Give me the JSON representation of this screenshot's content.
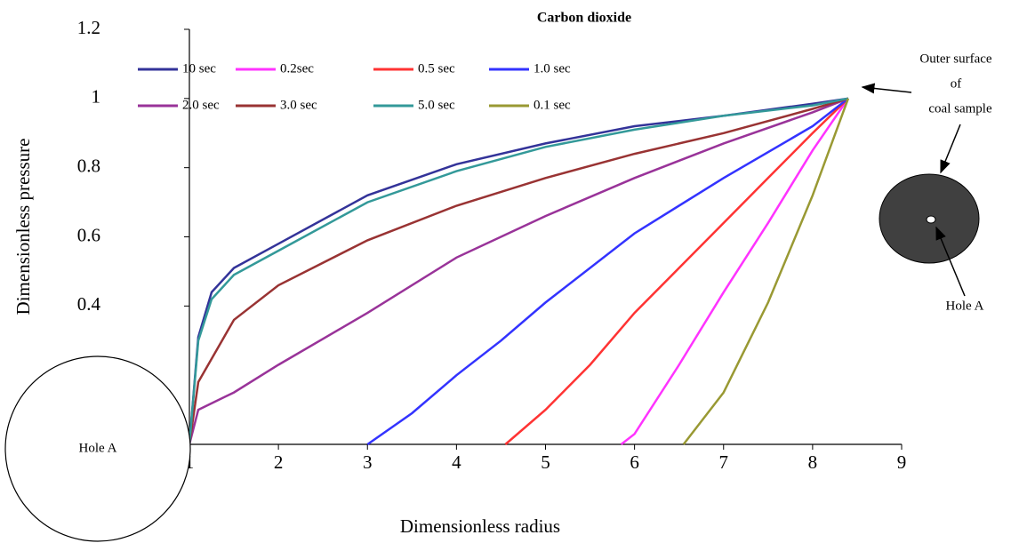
{
  "chart_data": {
    "type": "line",
    "title": "Carbon dioxide",
    "x_label": "Dimensionless radius",
    "y_label": "Dimensionless pressure",
    "xlim": [
      1,
      9
    ],
    "ylim": [
      0,
      1.2
    ],
    "xticks": [
      1,
      2,
      3,
      4,
      5,
      6,
      7,
      8,
      9
    ],
    "yticks": [
      0.4,
      0.6,
      0.8,
      1,
      1.2
    ],
    "annotations": [
      "Outer surface",
      "of",
      "coal sample",
      "Hole A",
      "Hole A"
    ],
    "series": [
      {
        "name": "10  sec",
        "color": "#333399",
        "x": [
          1,
          1.1,
          1.25,
          1.5,
          2,
          3,
          4,
          5,
          6,
          7,
          8,
          8.4
        ],
        "values": [
          0,
          0.31,
          0.44,
          0.51,
          0.58,
          0.72,
          0.81,
          0.87,
          0.92,
          0.95,
          0.985,
          1
        ]
      },
      {
        "name": "0.2sec",
        "color": "#ff33ff",
        "x": [
          5.85,
          6,
          6.5,
          7,
          7.5,
          8,
          8.4
        ],
        "values": [
          0,
          0.03,
          0.23,
          0.44,
          0.64,
          0.85,
          1
        ]
      },
      {
        "name": "0.5 sec",
        "color": "#ff3333",
        "x": [
          4.55,
          5,
          5.5,
          6,
          6.5,
          7,
          7.5,
          8,
          8.4
        ],
        "values": [
          0,
          0.1,
          0.23,
          0.38,
          0.51,
          0.64,
          0.77,
          0.9,
          1
        ]
      },
      {
        "name": "1.0 sec",
        "color": "#3333ff",
        "x": [
          3,
          3.5,
          4,
          4.5,
          5,
          6,
          7,
          8,
          8.4
        ],
        "values": [
          0,
          0.09,
          0.2,
          0.3,
          0.41,
          0.61,
          0.77,
          0.92,
          1
        ]
      },
      {
        "name": "2.0 sec",
        "color": "#993399",
        "x": [
          1,
          1.1,
          1.5,
          2,
          3,
          4,
          5,
          6,
          7,
          8,
          8.4
        ],
        "values": [
          0,
          0.1,
          0.15,
          0.23,
          0.38,
          0.54,
          0.66,
          0.77,
          0.87,
          0.96,
          1
        ]
      },
      {
        "name": "3.0 sec",
        "color": "#993333",
        "x": [
          1,
          1.1,
          1.5,
          2,
          3,
          4,
          5,
          6,
          7,
          8,
          8.4
        ],
        "values": [
          0,
          0.18,
          0.36,
          0.46,
          0.59,
          0.69,
          0.77,
          0.84,
          0.9,
          0.97,
          1
        ]
      },
      {
        "name": "5.0 sec",
        "color": "#339999",
        "x": [
          1,
          1.1,
          1.25,
          1.5,
          2,
          3,
          4,
          5,
          6,
          7,
          8,
          8.4
        ],
        "values": [
          0,
          0.3,
          0.42,
          0.49,
          0.56,
          0.7,
          0.79,
          0.86,
          0.91,
          0.95,
          0.98,
          1
        ]
      },
      {
        "name": "0.1 sec",
        "color": "#999933",
        "x": [
          6.55,
          7,
          7.5,
          8,
          8.4
        ],
        "values": [
          0,
          0.15,
          0.41,
          0.72,
          1
        ]
      }
    ]
  }
}
